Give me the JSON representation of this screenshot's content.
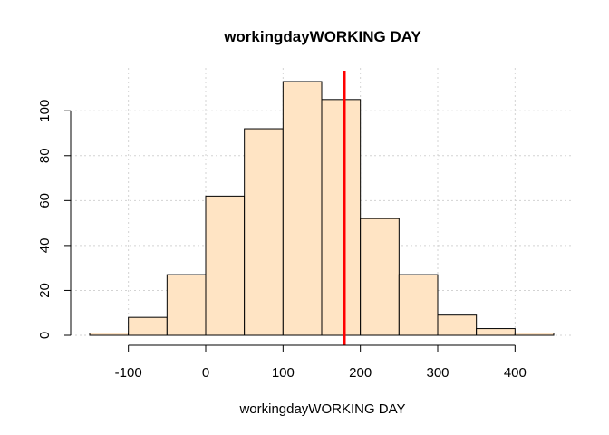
{
  "chart_data": {
    "type": "bar",
    "title": "workingdayWORKING DAY",
    "xlabel": "workingdayWORKING DAY",
    "ylabel": "",
    "bin_edges": [
      -150,
      -100,
      -50,
      0,
      50,
      100,
      150,
      200,
      250,
      300,
      350,
      400,
      450
    ],
    "values": [
      1,
      8,
      27,
      62,
      92,
      113,
      105,
      52,
      27,
      9,
      3,
      1
    ],
    "x_ticks": [
      -100,
      0,
      100,
      200,
      300,
      400
    ],
    "y_ticks": [
      0,
      20,
      40,
      60,
      80,
      100
    ],
    "xlim": [
      -150,
      450
    ],
    "ylim": [
      0,
      113
    ],
    "reference_line": {
      "x": 179,
      "color": "#ff0000"
    },
    "bar_color": "#ffe4c4",
    "grid": true
  }
}
